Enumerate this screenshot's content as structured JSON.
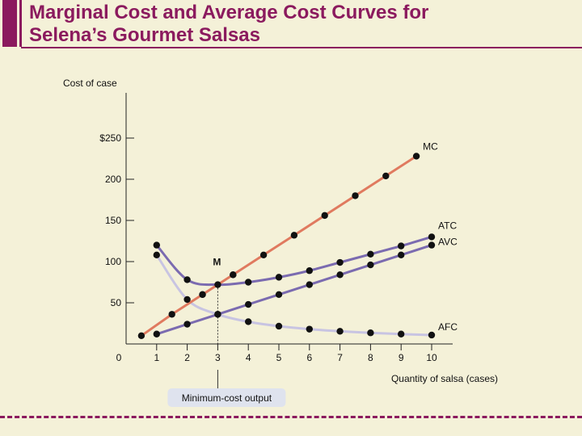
{
  "page": {
    "title_line1": "Marginal Cost and Average Cost Curves for",
    "title_line2": "Selena’s Gourmet Salsas",
    "accent_color": "#8b1a5e",
    "background_color": "#f4f1d8"
  },
  "chart_data": {
    "type": "line",
    "title": "Marginal Cost and Average Cost Curves for Selena’s Gourmet Salsas",
    "xlabel": "Quantity of salsa (cases)",
    "ylabel": "Cost of case",
    "xlim": [
      0,
      10
    ],
    "ylim": [
      0,
      300
    ],
    "x_ticks": [
      {
        "value": 0,
        "label": "0"
      },
      {
        "value": 1,
        "label": "1"
      },
      {
        "value": 2,
        "label": "2"
      },
      {
        "value": 3,
        "label": "3"
      },
      {
        "value": 4,
        "label": "4"
      },
      {
        "value": 5,
        "label": "5"
      },
      {
        "value": 6,
        "label": "6"
      },
      {
        "value": 7,
        "label": "7"
      },
      {
        "value": 8,
        "label": "8"
      },
      {
        "value": 9,
        "label": "9"
      },
      {
        "value": 10,
        "label": "10"
      }
    ],
    "y_ticks": [
      {
        "value": 50,
        "label": "50"
      },
      {
        "value": 100,
        "label": "100"
      },
      {
        "value": 150,
        "label": "150"
      },
      {
        "value": 200,
        "label": "200"
      },
      {
        "value": 250,
        "label": "$250"
      }
    ],
    "series": [
      {
        "name": "MC",
        "color": "#e07a5f",
        "points": [
          [
            0.5,
            10
          ],
          [
            1.5,
            36
          ],
          [
            2.5,
            60
          ],
          [
            3.5,
            84
          ],
          [
            4.5,
            108
          ],
          [
            5.5,
            132
          ],
          [
            6.5,
            156
          ],
          [
            7.5,
            180
          ],
          [
            8.5,
            204
          ],
          [
            9.5,
            228
          ]
        ]
      },
      {
        "name": "ATC",
        "color": "#7b6bb0",
        "points": [
          [
            1,
            120
          ],
          [
            2,
            78
          ],
          [
            3,
            72
          ],
          [
            4,
            75
          ],
          [
            5,
            81
          ],
          [
            6,
            89
          ],
          [
            7,
            99
          ],
          [
            8,
            109
          ],
          [
            9,
            119
          ],
          [
            10,
            130
          ]
        ]
      },
      {
        "name": "AVC",
        "color": "#7b6bb0",
        "points": [
          [
            1,
            12
          ],
          [
            2,
            24
          ],
          [
            3,
            36
          ],
          [
            4,
            48
          ],
          [
            5,
            60
          ],
          [
            6,
            72
          ],
          [
            7,
            84
          ],
          [
            8,
            96
          ],
          [
            9,
            108
          ],
          [
            10,
            120
          ]
        ]
      },
      {
        "name": "AFC",
        "color": "#c8c4e2",
        "points": [
          [
            1,
            108
          ],
          [
            2,
            54
          ],
          [
            3,
            36
          ],
          [
            4,
            27
          ],
          [
            5,
            21.6
          ],
          [
            6,
            18
          ],
          [
            7,
            15.4
          ],
          [
            8,
            13.5
          ],
          [
            9,
            12
          ],
          [
            10,
            10.8
          ]
        ]
      }
    ],
    "extra_markers": [
      [
        2.5,
        60
      ],
      [
        3.5,
        84
      ]
    ],
    "annotations": {
      "min_point_label": "M",
      "min_point": [
        3,
        72
      ],
      "min_cost_output_label": "Minimum-cost output"
    }
  }
}
